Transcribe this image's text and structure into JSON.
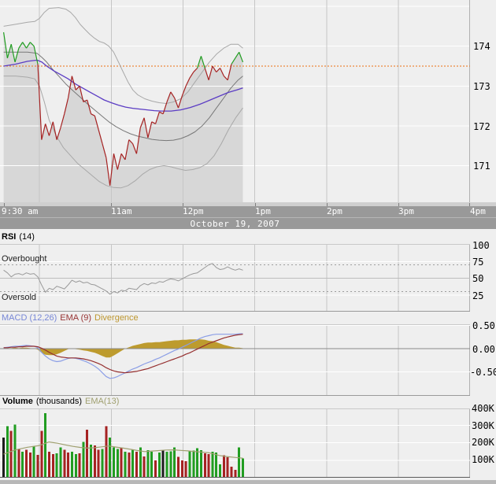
{
  "colors": {
    "up": "#219d21",
    "down": "#a52222",
    "neutral": "#1c1c1c",
    "prev_close_line": "#ec6f12",
    "price_ema": "#5b3cc4",
    "bollinger": "#a8a8a8",
    "bollinger_mid": "#787878",
    "area_fill": "#d7d7d7",
    "rsi_line": "#9a9a9a",
    "macd_line": "#8b9ee6",
    "macd_signal": "#952f2f",
    "macd_divergence_fill": "#bd9b2e",
    "volume_ema": "#a0a070"
  },
  "time_axis": {
    "labels": [
      "9:30 am",
      "11am",
      "12pm",
      "1pm",
      "2pm",
      "3pm",
      "4pm"
    ],
    "tick_minutes": [
      0,
      90,
      150,
      210,
      270,
      330,
      390
    ],
    "grid_minutes": [
      30,
      90,
      150,
      210,
      270,
      330,
      390
    ],
    "date": "October 19, 2007"
  },
  "axes": {
    "main": [
      "174",
      "173",
      "172",
      "171"
    ],
    "rsi": [
      "100",
      "75",
      "50",
      "25"
    ],
    "macd": [
      "0.50",
      "0.00",
      "-0.50"
    ],
    "volume": [
      "400K",
      "300K",
      "200K",
      "100K"
    ]
  },
  "panels": {
    "rsi": {
      "title_main": "RSI",
      "title_sub": "(14)",
      "overbought_label": "Overbought",
      "oversold_label": "Oversold"
    },
    "macd": {
      "legend_macd": "MACD (12,26)",
      "legend_ema": "EMA (9)",
      "legend_div": "Divergence"
    },
    "volume": {
      "title_main": "Volume",
      "title_sub": "(thousands)",
      "title_ema": "EMA(13)"
    }
  },
  "chart_data": [
    {
      "type": "line",
      "name": "price",
      "session_start": "9:30 am",
      "last_time": "12:50 pm",
      "prev_close": 173.5,
      "ylim": [
        170.08,
        175.16
      ],
      "step_min": 3.175,
      "gridlines": [
        175,
        174,
        173,
        172,
        171
      ],
      "price": [
        174.35,
        173.7,
        174.05,
        173.6,
        173.95,
        174.1,
        173.95,
        174.1,
        174.0,
        173.55,
        171.65,
        172.05,
        171.75,
        172.1,
        171.65,
        171.95,
        172.3,
        172.7,
        173.25,
        172.9,
        173.0,
        172.6,
        172.65,
        172.3,
        172.25,
        171.9,
        171.55,
        171.2,
        170.5,
        171.3,
        170.9,
        171.3,
        171.15,
        171.65,
        171.55,
        171.3,
        171.95,
        172.2,
        171.7,
        172.1,
        172.05,
        172.35,
        172.3,
        172.6,
        172.85,
        172.7,
        172.45,
        172.75,
        173.0,
        173.2,
        173.35,
        173.45,
        173.75,
        173.45,
        173.15,
        173.5,
        173.35,
        173.45,
        173.25,
        173.15,
        173.55,
        173.7,
        173.85,
        173.6
      ],
      "ema": [
        [
          0,
          173.5
        ],
        [
          10,
          173.55
        ],
        [
          20,
          173.62
        ],
        [
          28,
          173.65
        ],
        [
          32,
          173.6
        ],
        [
          36,
          173.5
        ],
        [
          42,
          173.38
        ],
        [
          48,
          173.28
        ],
        [
          54,
          173.18
        ],
        [
          60,
          173.05
        ],
        [
          66,
          172.95
        ],
        [
          72,
          172.85
        ],
        [
          78,
          172.75
        ],
        [
          84,
          172.65
        ],
        [
          90,
          172.58
        ],
        [
          96,
          172.52
        ],
        [
          102,
          172.47
        ],
        [
          108,
          172.44
        ],
        [
          114,
          172.42
        ],
        [
          120,
          172.4
        ],
        [
          126,
          172.38
        ],
        [
          132,
          172.37
        ],
        [
          140,
          172.37
        ],
        [
          148,
          172.4
        ],
        [
          156,
          172.46
        ],
        [
          164,
          172.54
        ],
        [
          172,
          172.64
        ],
        [
          180,
          172.74
        ],
        [
          188,
          172.84
        ],
        [
          195,
          172.9
        ],
        [
          200,
          172.95
        ]
      ],
      "bb_upper": [
        [
          0,
          174.5
        ],
        [
          10,
          174.55
        ],
        [
          20,
          174.6
        ],
        [
          26,
          174.62
        ],
        [
          30,
          174.7
        ],
        [
          34,
          174.85
        ],
        [
          38,
          174.95
        ],
        [
          46,
          174.97
        ],
        [
          52,
          174.93
        ],
        [
          56,
          174.85
        ],
        [
          60,
          174.72
        ],
        [
          64,
          174.55
        ],
        [
          68,
          174.42
        ],
        [
          72,
          174.3
        ],
        [
          76,
          174.2
        ],
        [
          80,
          174.12
        ],
        [
          84,
          174.08
        ],
        [
          88,
          174.0
        ],
        [
          92,
          173.85
        ],
        [
          96,
          173.6
        ],
        [
          100,
          173.35
        ],
        [
          104,
          173.1
        ],
        [
          108,
          172.9
        ],
        [
          112,
          172.78
        ],
        [
          118,
          172.68
        ],
        [
          124,
          172.62
        ],
        [
          130,
          172.58
        ],
        [
          136,
          172.56
        ],
        [
          142,
          172.6
        ],
        [
          148,
          172.68
        ],
        [
          154,
          172.85
        ],
        [
          160,
          173.1
        ],
        [
          166,
          173.35
        ],
        [
          172,
          173.6
        ],
        [
          178,
          173.8
        ],
        [
          184,
          173.95
        ],
        [
          190,
          174.05
        ],
        [
          196,
          174.05
        ],
        [
          200,
          173.95
        ]
      ],
      "bb_mid": [
        [
          0,
          173.85
        ],
        [
          10,
          173.85
        ],
        [
          20,
          173.85
        ],
        [
          28,
          173.82
        ],
        [
          32,
          173.72
        ],
        [
          36,
          173.6
        ],
        [
          40,
          173.45
        ],
        [
          46,
          173.25
        ],
        [
          52,
          173.05
        ],
        [
          58,
          172.88
        ],
        [
          64,
          172.72
        ],
        [
          70,
          172.55
        ],
        [
          76,
          172.4
        ],
        [
          82,
          172.25
        ],
        [
          88,
          172.1
        ],
        [
          94,
          171.98
        ],
        [
          100,
          171.88
        ],
        [
          106,
          171.8
        ],
        [
          112,
          171.74
        ],
        [
          118,
          171.7
        ],
        [
          124,
          171.66
        ],
        [
          130,
          171.64
        ],
        [
          136,
          171.63
        ],
        [
          142,
          171.64
        ],
        [
          148,
          171.68
        ],
        [
          154,
          171.75
        ],
        [
          160,
          171.85
        ],
        [
          166,
          172.0
        ],
        [
          172,
          172.2
        ],
        [
          178,
          172.45
        ],
        [
          184,
          172.7
        ],
        [
          190,
          172.95
        ],
        [
          196,
          173.15
        ],
        [
          200,
          173.25
        ]
      ],
      "bb_lower": [
        [
          0,
          173.25
        ],
        [
          10,
          173.25
        ],
        [
          20,
          173.22
        ],
        [
          26,
          173.18
        ],
        [
          30,
          173.0
        ],
        [
          34,
          172.6
        ],
        [
          38,
          172.15
        ],
        [
          44,
          171.75
        ],
        [
          50,
          171.45
        ],
        [
          56,
          171.25
        ],
        [
          62,
          171.05
        ],
        [
          68,
          170.9
        ],
        [
          74,
          170.75
        ],
        [
          80,
          170.6
        ],
        [
          86,
          170.5
        ],
        [
          92,
          170.45
        ],
        [
          98,
          170.44
        ],
        [
          104,
          170.5
        ],
        [
          110,
          170.62
        ],
        [
          116,
          170.78
        ],
        [
          122,
          170.9
        ],
        [
          128,
          170.97
        ],
        [
          134,
          171.0
        ],
        [
          140,
          170.97
        ],
        [
          146,
          170.92
        ],
        [
          152,
          170.88
        ],
        [
          158,
          170.9
        ],
        [
          164,
          170.95
        ],
        [
          170,
          171.05
        ],
        [
          176,
          171.25
        ],
        [
          182,
          171.55
        ],
        [
          188,
          171.9
        ],
        [
          194,
          172.2
        ],
        [
          200,
          172.45
        ]
      ]
    },
    {
      "type": "line",
      "name": "rsi",
      "title": "RSI (14)",
      "ylim": [
        0,
        101.2
      ],
      "step_min": 3.175,
      "overbought": 70,
      "oversold": 30,
      "center": 50,
      "gridlines": [
        75,
        25
      ],
      "values": [
        62,
        58,
        52,
        56,
        57,
        55,
        58,
        56,
        57,
        52,
        40,
        29,
        35,
        33,
        38,
        36,
        34,
        40,
        47,
        44,
        46,
        43,
        44,
        41,
        40,
        37,
        34,
        31,
        26,
        30,
        28,
        32,
        31,
        35,
        34,
        33,
        39,
        42,
        40,
        43,
        42,
        45,
        44,
        47,
        49,
        48,
        46,
        49,
        52,
        55,
        57,
        58,
        62,
        66,
        70,
        72,
        66,
        63,
        64,
        67,
        64,
        62,
        64,
        62
      ]
    },
    {
      "type": "line",
      "name": "macd",
      "ylim": [
        -1.017,
        0.525
      ],
      "step_min": 3.175,
      "zero": 0,
      "gridlines": [
        0.5,
        -0.5
      ],
      "macd": [
        0.02,
        0.03,
        0.04,
        0.05,
        0.05,
        0.06,
        0.07,
        0.06,
        0.05,
        0.02,
        -0.08,
        -0.16,
        -0.22,
        -0.26,
        -0.28,
        -0.27,
        -0.24,
        -0.21,
        -0.2,
        -0.21,
        -0.23,
        -0.26,
        -0.29,
        -0.33,
        -0.38,
        -0.44,
        -0.52,
        -0.6,
        -0.64,
        -0.63,
        -0.6,
        -0.56,
        -0.52,
        -0.48,
        -0.44,
        -0.41,
        -0.37,
        -0.33,
        -0.3,
        -0.27,
        -0.23,
        -0.2,
        -0.16,
        -0.12,
        -0.08,
        -0.04,
        -0.01,
        0.03,
        0.07,
        0.11,
        0.15,
        0.19,
        0.23,
        0.26,
        0.28,
        0.3,
        0.31,
        0.31,
        0.31,
        0.31,
        0.31,
        0.31,
        0.32,
        0.32
      ],
      "signal": [
        0.02,
        0.02,
        0.03,
        0.03,
        0.04,
        0.04,
        0.05,
        0.05,
        0.05,
        0.04,
        0.01,
        -0.03,
        -0.08,
        -0.12,
        -0.16,
        -0.18,
        -0.19,
        -0.2,
        -0.2,
        -0.2,
        -0.21,
        -0.22,
        -0.24,
        -0.26,
        -0.29,
        -0.32,
        -0.36,
        -0.41,
        -0.45,
        -0.48,
        -0.5,
        -0.51,
        -0.52,
        -0.51,
        -0.5,
        -0.49,
        -0.47,
        -0.45,
        -0.43,
        -0.4,
        -0.37,
        -0.34,
        -0.31,
        -0.28,
        -0.25,
        -0.22,
        -0.19,
        -0.16,
        -0.12,
        -0.09,
        -0.05,
        -0.01,
        0.03,
        0.07,
        0.11,
        0.14,
        0.17,
        0.2,
        0.23,
        0.25,
        0.27,
        0.29,
        0.3,
        0.31
      ]
    },
    {
      "type": "bar",
      "name": "volume",
      "unit": "thousands",
      "ylim": [
        0,
        397.7
      ],
      "step_min": 3.175,
      "gridlines": [
        400,
        300,
        200,
        100
      ],
      "values": [
        230,
        295,
        270,
        305,
        165,
        150,
        160,
        145,
        180,
        130,
        270,
        370,
        150,
        135,
        140,
        175,
        160,
        145,
        150,
        135,
        140,
        205,
        275,
        190,
        185,
        160,
        165,
        295,
        230,
        175,
        165,
        170,
        150,
        145,
        160,
        150,
        174,
        121,
        159,
        149,
        99,
        144,
        155,
        149,
        151,
        174,
        120,
        99,
        94,
        151,
        155,
        170,
        159,
        139,
        136,
        149,
        144,
        76,
        129,
        118,
        64,
        45,
        174,
        110
      ],
      "bar_colors": "kgrgrgrrgrrgrrggrrggrgrgrrgrgggrgrgrgrggrgkgggrrrggggrrgggrrrrgg",
      "ema": [
        [
          0,
          135
        ],
        [
          10,
          160
        ],
        [
          20,
          175
        ],
        [
          30,
          185
        ],
        [
          38,
          205
        ],
        [
          45,
          198
        ],
        [
          52,
          188
        ],
        [
          58,
          180
        ],
        [
          64,
          174
        ],
        [
          70,
          170
        ],
        [
          76,
          172
        ],
        [
          82,
          177
        ],
        [
          88,
          182
        ],
        [
          94,
          176
        ],
        [
          100,
          170
        ],
        [
          106,
          163
        ],
        [
          112,
          156
        ],
        [
          118,
          150
        ],
        [
          124,
          153
        ],
        [
          130,
          156
        ],
        [
          136,
          159
        ],
        [
          142,
          160
        ],
        [
          148,
          157
        ],
        [
          154,
          154
        ],
        [
          160,
          150
        ],
        [
          166,
          147
        ],
        [
          172,
          143
        ],
        [
          176,
          136
        ],
        [
          180,
          128
        ],
        [
          184,
          124
        ],
        [
          188,
          120
        ],
        [
          194,
          116
        ],
        [
          200,
          112
        ]
      ]
    }
  ]
}
